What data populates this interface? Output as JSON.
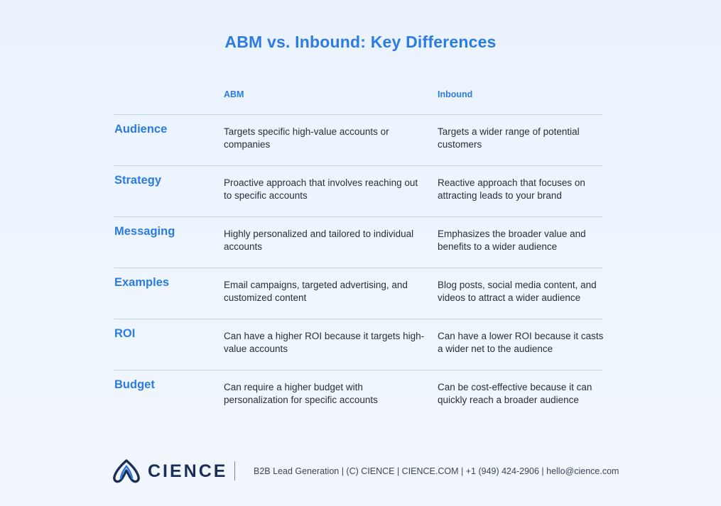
{
  "title": "ABM vs. Inbound: Key Differences",
  "columns": {
    "abm": "ABM",
    "inbound": "Inbound"
  },
  "rows": [
    {
      "label": "Audience",
      "abm": "Targets specific high-value accounts or companies",
      "inbound": "Targets a wider range of potential customers"
    },
    {
      "label": "Strategy",
      "abm": "Proactive approach that involves reaching out to specific accounts",
      "inbound": "Reactive approach that focuses on attracting leads to your brand"
    },
    {
      "label": "Messaging",
      "abm": "Highly personalized and tailored to individual accounts",
      "inbound": "Emphasizes the broader value and benefits to a wider audience"
    },
    {
      "label": "Examples",
      "abm": "Email campaigns, targeted advertising, and customized content",
      "inbound": "Blog posts, social media content, and videos to attract a wider audience"
    },
    {
      "label": "ROI",
      "abm": "Can have a higher ROI because it targets high-value accounts",
      "inbound": "Can have a lower ROI because it casts a wider net to the audience"
    },
    {
      "label": "Budget",
      "abm": "Can require a higher budget with personalization for specific accounts",
      "inbound": "Can be cost-effective because it can quickly reach a broader audience"
    }
  ],
  "footer": {
    "logo_text": "CIENCE",
    "logo_icon": "cience-mark-icon",
    "info": "B2B Lead Generation | (C) CIENCE | CIENCE.COM | +1 (949) 424-2906 | hello@cience.com"
  },
  "colors": {
    "accent": "#2b7be3",
    "brand_dark": "#1b2e55",
    "divider": "#c4d1df",
    "background": "#eef5fd"
  }
}
